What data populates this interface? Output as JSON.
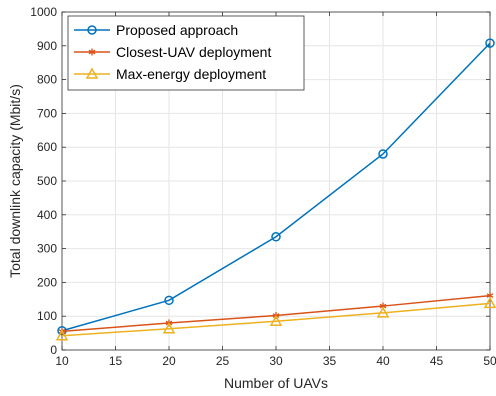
{
  "chart_data": {
    "type": "line",
    "title": "",
    "xlabel": "Number of UAVs",
    "ylabel": "Total downlink capacity (Mbit/s)",
    "xlim": [
      10,
      50
    ],
    "ylim": [
      0,
      1000
    ],
    "x_ticks": [
      10,
      15,
      20,
      25,
      30,
      35,
      40,
      45,
      50
    ],
    "y_ticks": [
      0,
      100,
      200,
      300,
      400,
      500,
      600,
      700,
      800,
      900,
      1000
    ],
    "grid": true,
    "legend_position": "top-left",
    "x": [
      10,
      20,
      30,
      40,
      50
    ],
    "series": [
      {
        "name": "Proposed approach",
        "color": "#0072BD",
        "marker": "circle",
        "values": [
          57,
          147,
          335,
          580,
          908
        ]
      },
      {
        "name": "Closest-UAV deployment",
        "color": "#D95319",
        "marker": "asterisk",
        "values": [
          55,
          80,
          102,
          130,
          161
        ]
      },
      {
        "name": "Max-energy deployment",
        "color": "#EDB120",
        "marker": "triangle",
        "values": [
          42,
          63,
          85,
          110,
          138
        ]
      }
    ]
  }
}
